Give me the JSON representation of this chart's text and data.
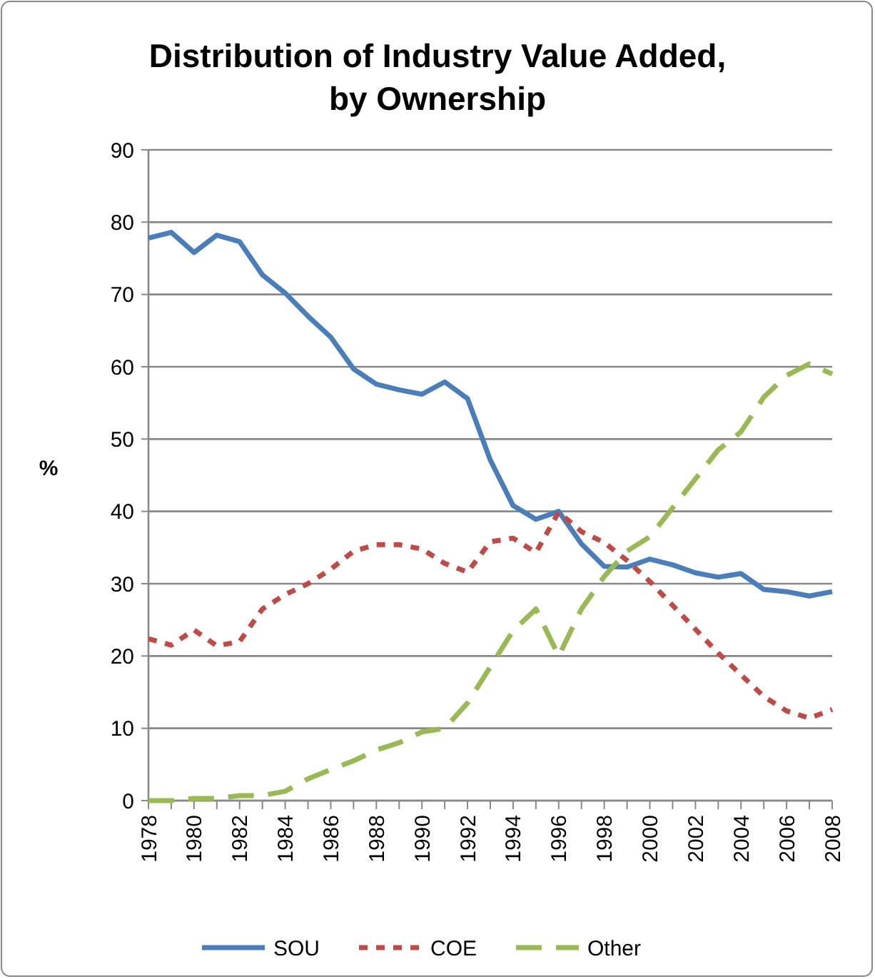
{
  "chart_data": {
    "type": "line",
    "title": "Distribution of Industry Value Added,\nby Ownership",
    "ylabel": "%",
    "x": [
      1978,
      1979,
      1980,
      1981,
      1982,
      1983,
      1984,
      1985,
      1986,
      1987,
      1988,
      1989,
      1990,
      1991,
      1992,
      1993,
      1994,
      1995,
      1996,
      1997,
      1998,
      1999,
      2000,
      2001,
      2002,
      2003,
      2004,
      2005,
      2006,
      2007,
      2008
    ],
    "series": [
      {
        "name": "SOU",
        "color": "#4a7ebb",
        "line_style": "solid",
        "values": [
          77.8,
          78.6,
          75.8,
          78.2,
          77.3,
          72.7,
          70.2,
          67,
          64.1,
          59.7,
          57.6,
          56.8,
          56.2,
          57.9,
          55.6,
          47.1,
          40.8,
          38.9,
          40,
          35.5,
          32.4,
          32.3,
          33.4,
          32.6,
          31.5,
          30.9,
          31.4,
          29.2,
          28.9,
          28.3,
          28.9
        ]
      },
      {
        "name": "COE",
        "color": "#be4b48",
        "line_style": "dotted",
        "values": [
          22.4,
          21.5,
          23.6,
          21.4,
          22,
          26.5,
          28.5,
          30,
          32,
          34.5,
          35.4,
          35.4,
          34.8,
          32.8,
          31.6,
          35.8,
          36.3,
          34.3,
          39.9,
          37.2,
          35.7,
          33.2,
          30.3,
          27,
          23.7,
          20.4,
          17.4,
          14.4,
          12.4,
          11.4,
          12.6
        ]
      },
      {
        "name": "Other",
        "color": "#98b954",
        "line_style": "dashed",
        "values": [
          0,
          0,
          0.3,
          0.3,
          0.7,
          0.7,
          1.3,
          3,
          4.3,
          5.5,
          7,
          8,
          9.5,
          10,
          13.5,
          18.5,
          23.5,
          26.5,
          20,
          26.5,
          31,
          34.5,
          36.5,
          40.5,
          44.5,
          48.5,
          51,
          55.8,
          58.8,
          60.4,
          59
        ]
      }
    ],
    "xlim": [
      1978,
      2008
    ],
    "xticks": [
      1978,
      {
        "value": 1979,
        "label": null
      },
      1980,
      {
        "value": 1981,
        "label": null
      },
      1982,
      {
        "value": 1983,
        "label": null
      },
      1984,
      {
        "value": 1985,
        "label": null
      },
      1986,
      {
        "value": 1987,
        "label": null
      },
      1988,
      {
        "value": 1989,
        "label": null
      },
      1990,
      {
        "value": 1991,
        "label": null
      },
      1992,
      {
        "value": 1993,
        "label": null
      },
      1994,
      {
        "value": 1995,
        "label": null
      },
      1996,
      {
        "value": 1997,
        "label": null
      },
      1998,
      {
        "value": 1999,
        "label": null
      },
      2000,
      {
        "value": 2001,
        "label": null
      },
      2002,
      {
        "value": 2003,
        "label": null
      },
      2004,
      {
        "value": 2005,
        "label": null
      },
      2006,
      {
        "value": 2007,
        "label": null
      },
      2008
    ],
    "ylim": [
      0,
      90
    ],
    "yticks": [
      0,
      10,
      20,
      30,
      40,
      50,
      60,
      70,
      80,
      90
    ],
    "grid": "y",
    "legend": "bottom",
    "marker": "none"
  }
}
